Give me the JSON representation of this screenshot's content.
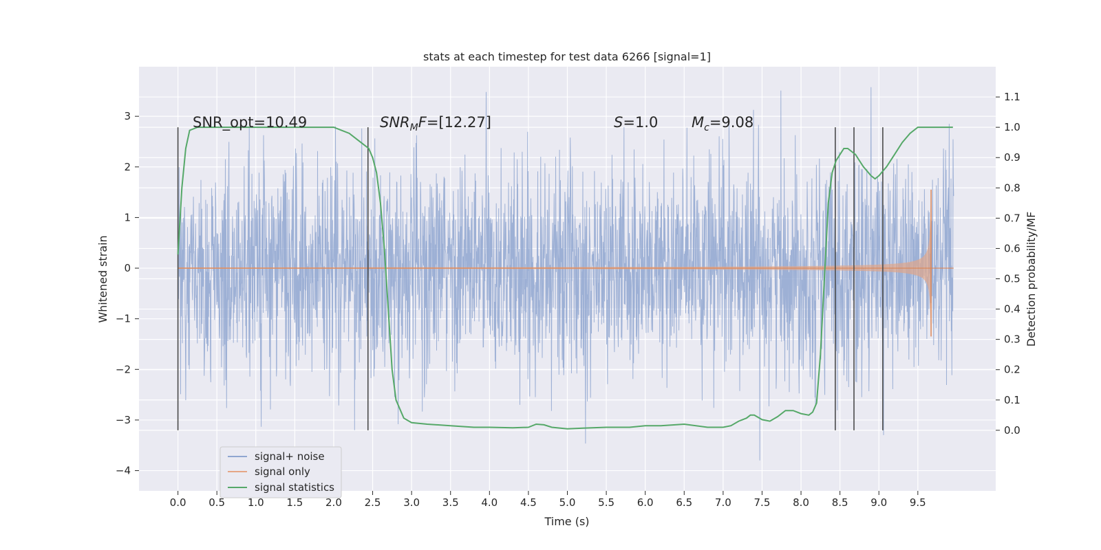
{
  "chart_data": {
    "type": "line",
    "title": "stats at each timestep for test data 6266 [signal=1]",
    "xlabel": "Time (s)",
    "ylabel": "Whitened strain",
    "y2label": "Detection probability/MF",
    "xlim": [
      -0.5,
      10.5
    ],
    "ylim": [
      -4.4,
      3.98
    ],
    "y2lim": [
      -0.2,
      1.2
    ],
    "x_ticks": [
      "0.0",
      "0.5",
      "1.0",
      "1.5",
      "2.0",
      "2.5",
      "3.0",
      "3.5",
      "4.0",
      "4.5",
      "5.0",
      "5.5",
      "6.0",
      "6.5",
      "7.0",
      "7.5",
      "8.0",
      "8.5",
      "9.0",
      "9.5"
    ],
    "y_ticks": [
      "3",
      "2",
      "1",
      "0",
      "−1",
      "−2",
      "−3",
      "−4"
    ],
    "y2_ticks": [
      "1.1",
      "1.0",
      "0.9",
      "0.8",
      "0.7",
      "0.6",
      "0.5",
      "0.4",
      "0.3",
      "0.2",
      "0.1",
      "0.0"
    ],
    "grid": true,
    "legend_position": "lower-left",
    "annotations": {
      "snr_opt": "SNR_opt=10.49",
      "snr_mf": "=[12.27]",
      "s_value": "=1.0",
      "mc_value": "=9.08"
    },
    "series": [
      {
        "name": "signal+ noise",
        "color": "#8fa6d0",
        "x_range": [
          0.0,
          9.96
        ],
        "envelope_typical": [
          -1.5,
          1.6
        ],
        "envelope_extreme": [
          -3.8,
          3.6
        ]
      },
      {
        "name": "signal only",
        "color": "#dd8452",
        "x_range": [
          0.0,
          9.96
        ],
        "chirp_merger_time": 9.67,
        "chirp_peak_amplitude": [
          1.55,
          -1.35
        ]
      },
      {
        "name": "signal statistics",
        "color": "#55a868",
        "axis": "right",
        "x": [
          0.0,
          0.05,
          0.1,
          0.15,
          0.25,
          0.5,
          1.0,
          1.5,
          2.0,
          2.1,
          2.2,
          2.3,
          2.4,
          2.45,
          2.5,
          2.55,
          2.6,
          2.65,
          2.7,
          2.75,
          2.8,
          2.9,
          3.0,
          3.2,
          3.5,
          3.8,
          4.0,
          4.3,
          4.5,
          4.6,
          4.7,
          4.8,
          5.0,
          5.2,
          5.5,
          5.8,
          6.0,
          6.2,
          6.5,
          6.8,
          7.0,
          7.1,
          7.2,
          7.3,
          7.35,
          7.4,
          7.5,
          7.6,
          7.7,
          7.8,
          7.9,
          8.0,
          8.1,
          8.15,
          8.2,
          8.25,
          8.3,
          8.35,
          8.4,
          8.45,
          8.5,
          8.55,
          8.6,
          8.7,
          8.75,
          8.8,
          8.9,
          8.95,
          9.0,
          9.1,
          9.2,
          9.3,
          9.4,
          9.5,
          9.6,
          9.7,
          9.8,
          9.95
        ],
        "values": [
          0.58,
          0.8,
          0.93,
          0.99,
          1.0,
          1.0,
          1.0,
          1.0,
          1.0,
          0.99,
          0.98,
          0.96,
          0.94,
          0.93,
          0.9,
          0.85,
          0.75,
          0.6,
          0.4,
          0.2,
          0.1,
          0.04,
          0.025,
          0.02,
          0.015,
          0.01,
          0.01,
          0.008,
          0.01,
          0.02,
          0.018,
          0.01,
          0.005,
          0.007,
          0.01,
          0.01,
          0.015,
          0.015,
          0.02,
          0.01,
          0.01,
          0.015,
          0.03,
          0.04,
          0.05,
          0.05,
          0.035,
          0.03,
          0.045,
          0.065,
          0.065,
          0.055,
          0.05,
          0.06,
          0.09,
          0.25,
          0.5,
          0.75,
          0.85,
          0.89,
          0.91,
          0.93,
          0.93,
          0.91,
          0.89,
          0.87,
          0.84,
          0.83,
          0.84,
          0.87,
          0.91,
          0.95,
          0.98,
          1.0,
          1.0,
          1.0,
          1.0,
          1.0
        ]
      }
    ],
    "vlines": [
      0.0,
      2.44,
      8.44,
      8.68,
      9.05
    ],
    "vline_color": "#4a4a4a"
  }
}
